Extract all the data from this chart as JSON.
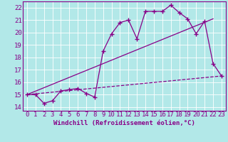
{
  "title": "",
  "xlabel": "Windchill (Refroidissement éolien,°C)",
  "ylabel": "",
  "background_color": "#b2e8e8",
  "grid_color": "#d0e8e8",
  "line_color": "#880088",
  "xlim": [
    -0.5,
    23.5
  ],
  "ylim": [
    13.7,
    22.5
  ],
  "xticks": [
    0,
    1,
    2,
    3,
    4,
    5,
    6,
    7,
    8,
    9,
    10,
    11,
    12,
    13,
    14,
    15,
    16,
    17,
    18,
    19,
    20,
    21,
    22,
    23
  ],
  "yticks": [
    14,
    15,
    16,
    17,
    18,
    19,
    20,
    21,
    22
  ],
  "line1_x": [
    0,
    1,
    2,
    3,
    4,
    5,
    6,
    7,
    8,
    9,
    10,
    11,
    12,
    13,
    14,
    15,
    16,
    17,
    18,
    19,
    20,
    21,
    22,
    23
  ],
  "line1_y": [
    15.0,
    15.0,
    14.3,
    14.5,
    15.3,
    15.4,
    15.5,
    15.1,
    14.8,
    18.5,
    19.9,
    20.8,
    21.0,
    19.5,
    21.7,
    21.7,
    21.7,
    22.2,
    21.6,
    21.1,
    19.9,
    20.9,
    17.5,
    16.5
  ],
  "line2_x": [
    0,
    22
  ],
  "line2_y": [
    15.0,
    21.1
  ],
  "line3_x": [
    0,
    23
  ],
  "line3_y": [
    15.0,
    16.5
  ],
  "font_size": 6.5,
  "marker": "P",
  "marker_size": 2.5
}
